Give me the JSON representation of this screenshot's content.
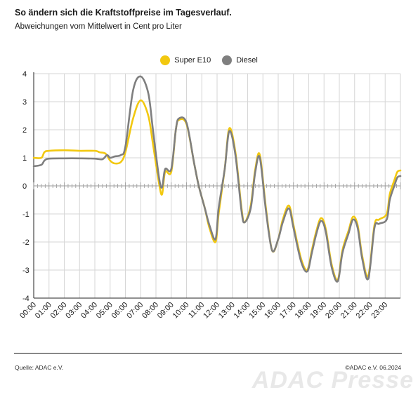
{
  "header": {
    "title": "So ändern sich die Kraftstoffpreise im Tagesverlauf.",
    "subtitle": "Abweichungen vom Mittelwert in Cent pro Liter"
  },
  "footer": {
    "source": "Quelle: ADAC e.V.",
    "copyright": "©ADAC e.V.  06.2024",
    "watermark": "ADAC Presse"
  },
  "colors": {
    "super_e10": "#f2c80f",
    "diesel": "#7f7f7f",
    "grid": "#d6d6d6",
    "axis": "#222222"
  },
  "chart_data": {
    "type": "line",
    "ylim": [
      -4,
      4
    ],
    "yticks": [
      4,
      3,
      2,
      1,
      0,
      -1,
      -2,
      -3,
      -4
    ],
    "xlim": [
      0,
      24
    ],
    "xticks": [
      "00:00",
      "01:00",
      "02:00",
      "03:00",
      "04:00",
      "05:00",
      "06:00",
      "07:00",
      "08:00",
      "09:00",
      "10:00",
      "11:00",
      "12:00",
      "13:00",
      "14:00",
      "15:00",
      "16:00",
      "17:00",
      "18:00",
      "19:00",
      "20:00",
      "21:00",
      "22:00",
      "23:00"
    ],
    "grid": true,
    "legend_position": "top-center",
    "series": [
      {
        "name": "Super E10",
        "color": "#f2c80f",
        "points": [
          [
            0,
            1.0
          ],
          [
            0.5,
            1.0
          ],
          [
            0.7,
            1.2
          ],
          [
            1,
            1.25
          ],
          [
            2,
            1.27
          ],
          [
            3,
            1.25
          ],
          [
            4,
            1.25
          ],
          [
            4.3,
            1.2
          ],
          [
            4.7,
            1.15
          ],
          [
            5,
            0.9
          ],
          [
            5.3,
            0.8
          ],
          [
            5.7,
            0.85
          ],
          [
            6,
            1.2
          ],
          [
            6.5,
            2.4
          ],
          [
            7,
            3.05
          ],
          [
            7.5,
            2.5
          ],
          [
            7.8,
            1.5
          ],
          [
            8.2,
            0.1
          ],
          [
            8.4,
            -0.3
          ],
          [
            8.6,
            0.5
          ],
          [
            9,
            0.5
          ],
          [
            9.3,
            2.0
          ],
          [
            9.5,
            2.35
          ],
          [
            10,
            2.2
          ],
          [
            10.5,
            0.8
          ],
          [
            10.8,
            0.0
          ],
          [
            11.2,
            -0.8
          ],
          [
            11.5,
            -1.5
          ],
          [
            11.9,
            -2.0
          ],
          [
            12.1,
            -1.0
          ],
          [
            12.5,
            0.6
          ],
          [
            12.8,
            2.05
          ],
          [
            13.2,
            1.2
          ],
          [
            13.6,
            -0.8
          ],
          [
            13.8,
            -1.3
          ],
          [
            14.2,
            -0.7
          ],
          [
            14.5,
            0.6
          ],
          [
            14.8,
            1.1
          ],
          [
            15.2,
            -0.8
          ],
          [
            15.6,
            -2.3
          ],
          [
            16,
            -1.9
          ],
          [
            16.3,
            -1.2
          ],
          [
            16.7,
            -0.7
          ],
          [
            17,
            -1.4
          ],
          [
            17.5,
            -2.6
          ],
          [
            17.9,
            -3.0
          ],
          [
            18.2,
            -2.3
          ],
          [
            18.5,
            -1.6
          ],
          [
            18.8,
            -1.15
          ],
          [
            19.1,
            -1.5
          ],
          [
            19.5,
            -2.8
          ],
          [
            19.9,
            -3.35
          ],
          [
            20.2,
            -2.3
          ],
          [
            20.6,
            -1.6
          ],
          [
            20.9,
            -1.1
          ],
          [
            21.2,
            -1.4
          ],
          [
            21.5,
            -2.5
          ],
          [
            21.9,
            -3.2
          ],
          [
            22.3,
            -1.4
          ],
          [
            22.6,
            -1.2
          ],
          [
            23.1,
            -1.0
          ],
          [
            23.3,
            -0.3
          ],
          [
            23.6,
            0.2
          ],
          [
            23.8,
            0.5
          ],
          [
            24,
            0.55
          ]
        ]
      },
      {
        "name": "Diesel",
        "color": "#7f7f7f",
        "points": [
          [
            0,
            0.7
          ],
          [
            0.5,
            0.75
          ],
          [
            0.7,
            0.9
          ],
          [
            1,
            0.97
          ],
          [
            2,
            0.98
          ],
          [
            3,
            0.98
          ],
          [
            4,
            0.97
          ],
          [
            4.5,
            0.95
          ],
          [
            4.8,
            1.1
          ],
          [
            5,
            1.0
          ],
          [
            5.3,
            1.05
          ],
          [
            5.7,
            1.1
          ],
          [
            6,
            1.4
          ],
          [
            6.5,
            3.4
          ],
          [
            7,
            3.9
          ],
          [
            7.5,
            3.3
          ],
          [
            7.8,
            2.0
          ],
          [
            8.2,
            0.3
          ],
          [
            8.4,
            -0.05
          ],
          [
            8.6,
            0.6
          ],
          [
            9,
            0.6
          ],
          [
            9.3,
            2.0
          ],
          [
            9.5,
            2.4
          ],
          [
            10,
            2.25
          ],
          [
            10.5,
            0.8
          ],
          [
            10.8,
            0.0
          ],
          [
            11.2,
            -0.8
          ],
          [
            11.5,
            -1.4
          ],
          [
            11.9,
            -1.9
          ],
          [
            12.1,
            -0.8
          ],
          [
            12.5,
            0.6
          ],
          [
            12.8,
            1.95
          ],
          [
            13.2,
            1.1
          ],
          [
            13.6,
            -0.9
          ],
          [
            13.8,
            -1.3
          ],
          [
            14.2,
            -0.8
          ],
          [
            14.5,
            0.5
          ],
          [
            14.8,
            1.0
          ],
          [
            15.2,
            -0.9
          ],
          [
            15.6,
            -2.3
          ],
          [
            16,
            -1.9
          ],
          [
            16.3,
            -1.3
          ],
          [
            16.7,
            -0.8
          ],
          [
            17,
            -1.5
          ],
          [
            17.5,
            -2.7
          ],
          [
            17.9,
            -3.05
          ],
          [
            18.2,
            -2.4
          ],
          [
            18.5,
            -1.7
          ],
          [
            18.8,
            -1.25
          ],
          [
            19.1,
            -1.6
          ],
          [
            19.5,
            -2.9
          ],
          [
            19.9,
            -3.4
          ],
          [
            20.2,
            -2.4
          ],
          [
            20.6,
            -1.7
          ],
          [
            20.9,
            -1.2
          ],
          [
            21.2,
            -1.5
          ],
          [
            21.5,
            -2.6
          ],
          [
            21.9,
            -3.3
          ],
          [
            22.3,
            -1.5
          ],
          [
            22.6,
            -1.35
          ],
          [
            23.1,
            -1.2
          ],
          [
            23.3,
            -0.5
          ],
          [
            23.6,
            0.0
          ],
          [
            23.8,
            0.3
          ],
          [
            24,
            0.35
          ]
        ]
      }
    ]
  }
}
